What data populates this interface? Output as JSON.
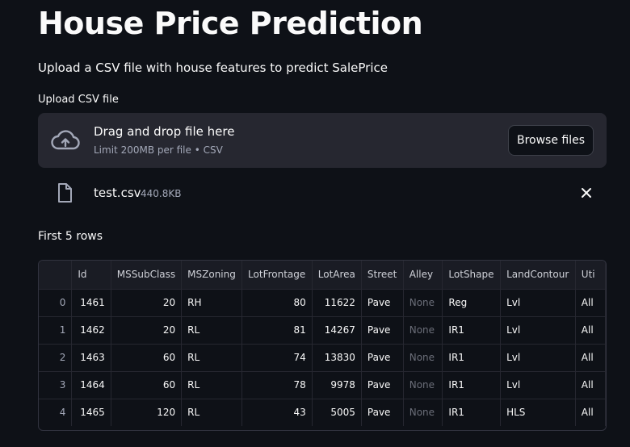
{
  "page": {
    "title": "House Price Prediction",
    "subtitle": "Upload a CSV file with house features to predict SalePrice"
  },
  "uploader": {
    "label": "Upload CSV file",
    "drag_text": "Drag and drop file here",
    "limit_text": "Limit 200MB per file • CSV",
    "browse_label": "Browse files",
    "icons": {
      "upload": "cloud-upload-icon",
      "file": "file-icon",
      "remove": "close-icon"
    }
  },
  "file": {
    "name": "test.csv",
    "size": "440.8KB"
  },
  "table": {
    "caption": "First 5 rows",
    "columns": [
      "",
      "Id",
      "MSSubClass",
      "MSZoning",
      "LotFrontage",
      "LotArea",
      "Street",
      "Alley",
      "LotShape",
      "LandContour",
      "Uti"
    ],
    "rows": [
      [
        "0",
        "1461",
        "20",
        "RH",
        "80",
        "11622",
        "Pave",
        "None",
        "Reg",
        "Lvl",
        "All"
      ],
      [
        "1",
        "1462",
        "20",
        "RL",
        "81",
        "14267",
        "Pave",
        "None",
        "IR1",
        "Lvl",
        "All"
      ],
      [
        "2",
        "1463",
        "60",
        "RL",
        "74",
        "13830",
        "Pave",
        "None",
        "IR1",
        "Lvl",
        "All"
      ],
      [
        "3",
        "1464",
        "60",
        "RL",
        "78",
        "9978",
        "Pave",
        "None",
        "IR1",
        "Lvl",
        "All"
      ],
      [
        "4",
        "1465",
        "120",
        "RL",
        "43",
        "5005",
        "Pave",
        "None",
        "IR1",
        "HLS",
        "All"
      ]
    ]
  }
}
